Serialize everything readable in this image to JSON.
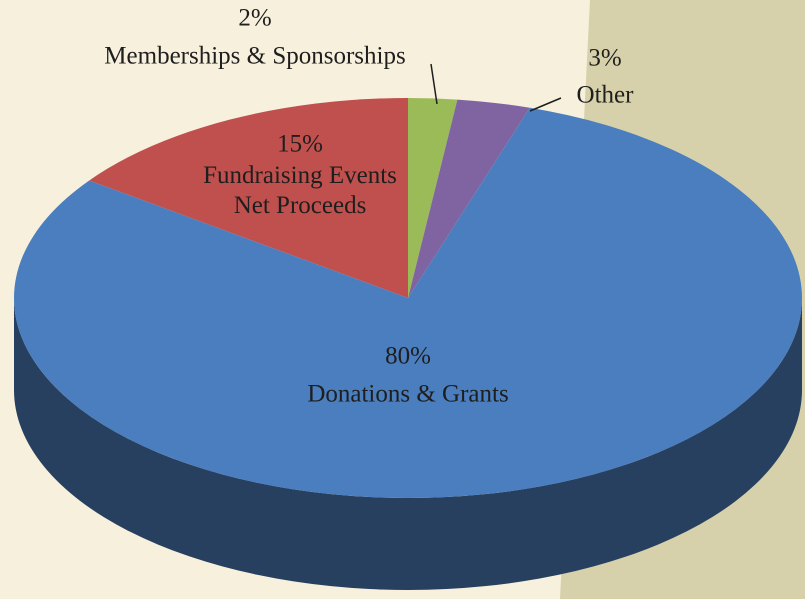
{
  "chart_data": {
    "type": "pie",
    "categories": [
      "Donations & Grants",
      "Fundraising Events\nNet Proceeds",
      "Memberships & Sponsorships",
      "Other"
    ],
    "values": [
      80,
      15,
      2,
      3
    ],
    "value_labels": [
      "80%",
      "15%",
      "2%",
      "3%"
    ],
    "colors": [
      "#4a7ebf",
      "#c0504d",
      "#9bbb59",
      "#8064a2"
    ],
    "side_color": "#27405f"
  }
}
